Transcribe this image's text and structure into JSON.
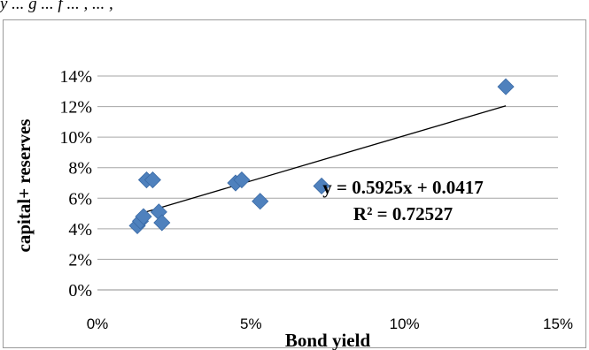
{
  "page": {
    "caption_fragment": "y ... g ... f ... , ... ,"
  },
  "chart_data": {
    "type": "scatter",
    "title": "",
    "xlabel": "Bond yield",
    "ylabel": "capital+ reserves",
    "xlim": [
      0,
      0.15
    ],
    "ylim": [
      0,
      0.14
    ],
    "x_ticks": [
      "0%",
      "5%",
      "10%",
      "15%"
    ],
    "y_ticks": [
      "0%",
      "2%",
      "4%",
      "6%",
      "8%",
      "10%",
      "12%",
      "14%"
    ],
    "grid": "horizontal",
    "marker": "diamond",
    "marker_color": "#4f81bd",
    "points": [
      {
        "x": 0.013,
        "y": 0.042
      },
      {
        "x": 0.014,
        "y": 0.045
      },
      {
        "x": 0.015,
        "y": 0.048
      },
      {
        "x": 0.016,
        "y": 0.072
      },
      {
        "x": 0.018,
        "y": 0.072
      },
      {
        "x": 0.02,
        "y": 0.051
      },
      {
        "x": 0.021,
        "y": 0.044
      },
      {
        "x": 0.045,
        "y": 0.07
      },
      {
        "x": 0.047,
        "y": 0.072
      },
      {
        "x": 0.053,
        "y": 0.058
      },
      {
        "x": 0.073,
        "y": 0.068
      },
      {
        "x": 0.133,
        "y": 0.133
      }
    ],
    "trendline": {
      "type": "linear",
      "x_range": [
        0.014,
        0.133
      ],
      "slope": 0.5925,
      "intercept": 0.0417,
      "equation": "y = 0.5925x + 0.0417",
      "r2": "R² = 0.72527"
    }
  }
}
